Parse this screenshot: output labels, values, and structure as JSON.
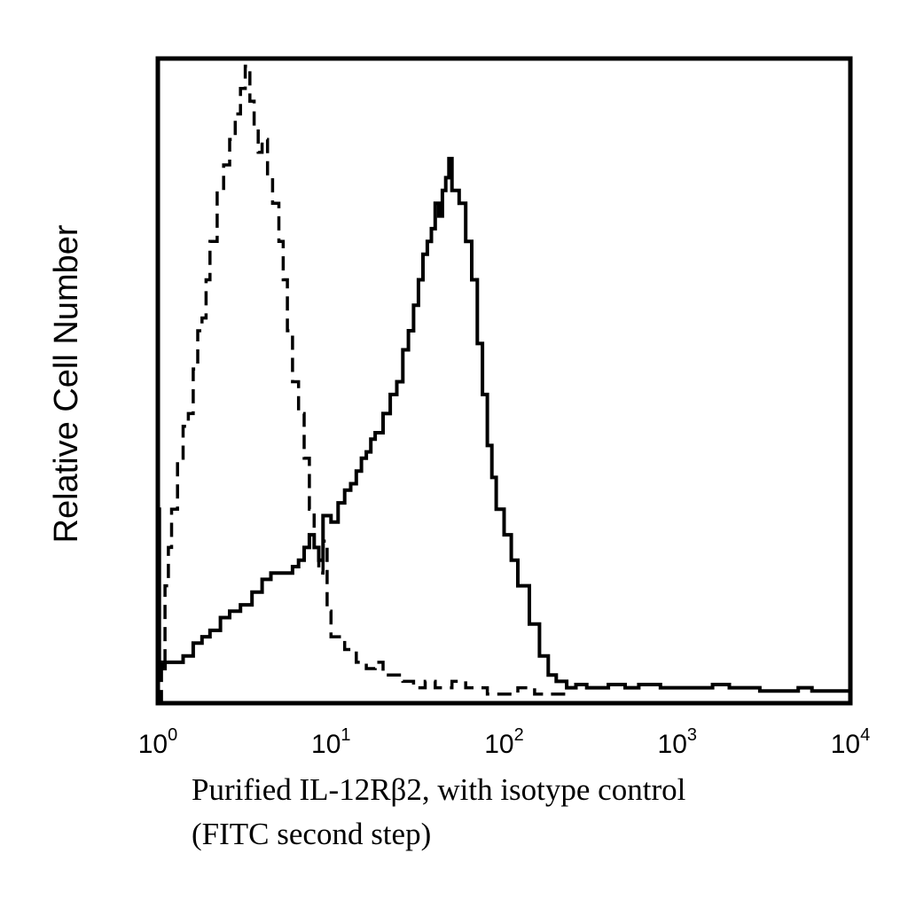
{
  "chart_data": {
    "type": "line",
    "title": "",
    "ylabel": "Relative Cell Number",
    "xlabel_lines": [
      "Purified IL-12Rβ2, with isotype control",
      "(FITC second step)"
    ],
    "x_scale": "log",
    "xlim": [
      1,
      10000
    ],
    "ylim": [
      0,
      1
    ],
    "x_ticks": [
      {
        "base": "10",
        "exp": "0",
        "value": 1
      },
      {
        "base": "10",
        "exp": "1",
        "value": 10
      },
      {
        "base": "10",
        "exp": "2",
        "value": 100
      },
      {
        "base": "10",
        "exp": "3",
        "value": 1000
      },
      {
        "base": "10",
        "exp": "4",
        "value": 10000
      }
    ],
    "grid": false,
    "legend": "none",
    "series": [
      {
        "style": "dashed",
        "color": "#000000",
        "x": [
          1.0,
          1.05,
          1.1,
          1.15,
          1.2,
          1.3,
          1.4,
          1.5,
          1.6,
          1.7,
          1.8,
          1.9,
          2.0,
          2.2,
          2.4,
          2.6,
          2.8,
          3.0,
          3.2,
          3.4,
          3.6,
          3.8,
          4.0,
          4.3,
          4.6,
          5.0,
          5.3,
          5.6,
          6.0,
          6.5,
          7.0,
          7.5,
          8.0,
          8.5,
          9.0,
          9.5,
          10,
          11,
          12,
          14,
          16,
          18,
          20,
          23,
          26,
          30,
          35,
          40,
          45,
          50,
          60,
          70,
          80,
          100,
          120,
          150,
          180,
          200,
          250
        ],
        "y": [
          0.0,
          0.05,
          0.18,
          0.24,
          0.3,
          0.38,
          0.43,
          0.45,
          0.52,
          0.58,
          0.6,
          0.66,
          0.72,
          0.8,
          0.84,
          0.88,
          0.92,
          0.96,
          0.995,
          0.94,
          0.9,
          0.86,
          0.88,
          0.82,
          0.78,
          0.72,
          0.66,
          0.58,
          0.5,
          0.45,
          0.38,
          0.3,
          0.24,
          0.2,
          0.25,
          0.14,
          0.1,
          0.1,
          0.08,
          0.06,
          0.05,
          0.06,
          0.04,
          0.04,
          0.03,
          0.02,
          0.03,
          0.02,
          0.02,
          0.03,
          0.02,
          0.02,
          0.01,
          0.01,
          0.02,
          0.01,
          0.01,
          0.01,
          0.01
        ]
      },
      {
        "style": "solid",
        "color": "#000000",
        "x": [
          1.0,
          1.02,
          1.05,
          1.1,
          1.2,
          1.4,
          1.6,
          1.8,
          2.0,
          2.3,
          2.6,
          3.0,
          3.5,
          4.0,
          4.5,
          5.0,
          5.5,
          6.0,
          6.5,
          7.0,
          7.5,
          8.0,
          8.5,
          9.0,
          10,
          11,
          12,
          13,
          14,
          15,
          16,
          17,
          18,
          20,
          22,
          24,
          26,
          28,
          30,
          32,
          34,
          36,
          38,
          40,
          42,
          44,
          46,
          48,
          50,
          55,
          60,
          65,
          70,
          75,
          80,
          85,
          90,
          100,
          110,
          120,
          140,
          160,
          180,
          200,
          230,
          260,
          300,
          350,
          400,
          500,
          600,
          800,
          1000,
          1300,
          1600,
          2000,
          2500,
          3000,
          4000,
          5000,
          6000,
          8000,
          10000
        ],
        "y": [
          0.3,
          0.06,
          0.05,
          0.06,
          0.06,
          0.07,
          0.09,
          0.1,
          0.11,
          0.13,
          0.14,
          0.15,
          0.17,
          0.19,
          0.2,
          0.2,
          0.2,
          0.21,
          0.22,
          0.24,
          0.26,
          0.24,
          0.22,
          0.29,
          0.28,
          0.31,
          0.33,
          0.34,
          0.36,
          0.38,
          0.39,
          0.41,
          0.42,
          0.45,
          0.48,
          0.5,
          0.55,
          0.58,
          0.62,
          0.66,
          0.7,
          0.72,
          0.74,
          0.78,
          0.76,
          0.8,
          0.82,
          0.85,
          0.8,
          0.78,
          0.72,
          0.66,
          0.56,
          0.48,
          0.4,
          0.35,
          0.3,
          0.26,
          0.22,
          0.18,
          0.12,
          0.07,
          0.04,
          0.03,
          0.02,
          0.025,
          0.02,
          0.02,
          0.025,
          0.02,
          0.025,
          0.02,
          0.02,
          0.02,
          0.025,
          0.02,
          0.02,
          0.015,
          0.015,
          0.02,
          0.015,
          0.015,
          0.015
        ]
      }
    ]
  }
}
